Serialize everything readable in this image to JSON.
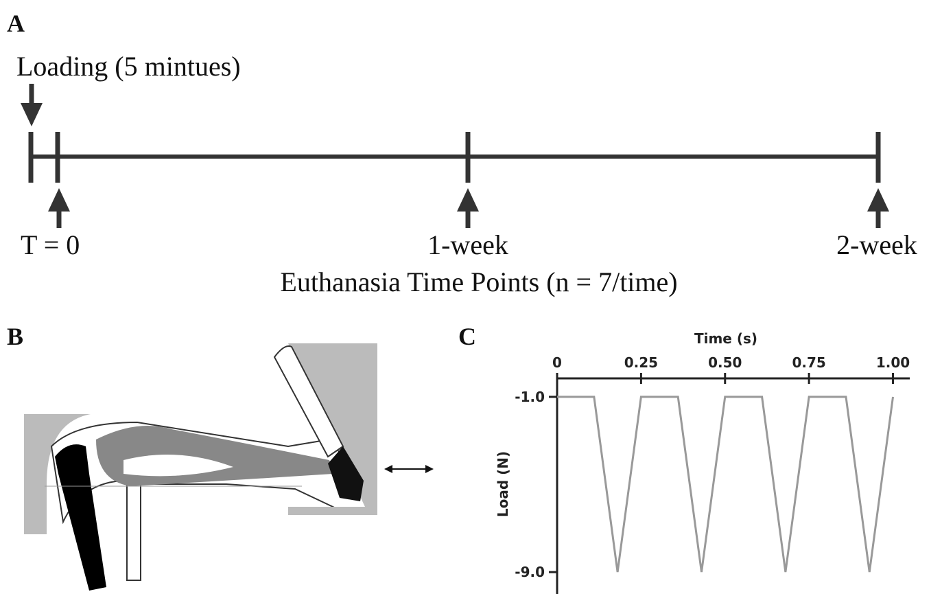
{
  "panel_a": {
    "label": "A",
    "loading": "Loading (5 mintues)",
    "t0": "T = 0",
    "week1": "1-week",
    "week2": "2-week",
    "caption": "Euthanasia Time Points (n = 7/time)"
  },
  "panel_b": {
    "label": "B"
  },
  "chart_data": {
    "type": "line",
    "panel_label": "C",
    "x_label": "Time (s)",
    "y_label": "Load (N)",
    "x": [
      0,
      0.11,
      0.18,
      0.25,
      0.36,
      0.43,
      0.5,
      0.61,
      0.68,
      0.75,
      0.86,
      0.93,
      1.0
    ],
    "values": [
      -1,
      -1,
      -9,
      -1,
      -1,
      -9,
      -1,
      -1,
      -9,
      -1,
      -1,
      -9,
      -1
    ],
    "color": "#999999",
    "xlim": [
      0,
      1.05
    ],
    "ylim": [
      -10,
      0
    ],
    "xticks": [
      0,
      0.25,
      {
        "value": 0.5,
        "label": "0.50"
      },
      0.75,
      {
        "value": 1,
        "label": "1.00"
      }
    ],
    "yticks": [
      {
        "value": -1,
        "label": "-1.0"
      },
      {
        "value": -9,
        "label": "-9.0"
      }
    ]
  }
}
